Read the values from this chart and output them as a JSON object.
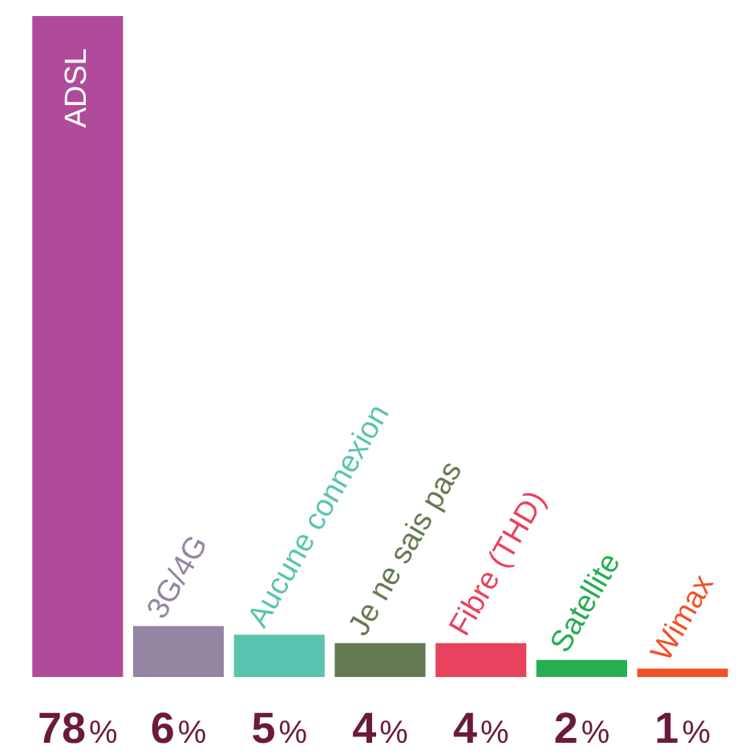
{
  "chart_data": {
    "type": "bar",
    "categories": [
      "ADSL",
      "3G/4G",
      "Aucune connexion",
      "Je ne sais pas",
      "Fibre (THD)",
      "Satellite",
      "Wimax"
    ],
    "values": [
      78,
      6,
      5,
      4,
      4,
      2,
      1
    ],
    "colors": [
      "#b04a9a",
      "#9485a3",
      "#5bc4b0",
      "#657a52",
      "#e8435e",
      "#27ae53",
      "#f0522a"
    ],
    "value_labels": [
      "78%",
      "6%",
      "5%",
      "4%",
      "4%",
      "2%",
      "1%"
    ],
    "tick_labels": false,
    "legend": false
  }
}
